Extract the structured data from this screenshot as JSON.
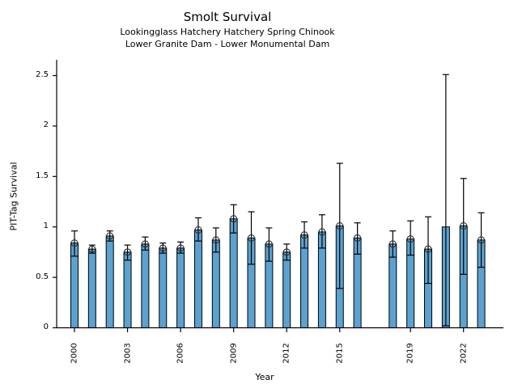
{
  "figure": {
    "title": "Smolt Survival",
    "subtitle_line1": "Lookingglass Hatchery Hatchery Spring Chinook",
    "subtitle_line2": "Lower Granite Dam - Lower Monumental Dam"
  },
  "chart_data": {
    "type": "bar",
    "title": "Smolt Survival",
    "subtitle": [
      "Lookingglass Hatchery Hatchery Spring Chinook",
      "Lower Granite Dam - Lower Monumental Dam"
    ],
    "xlabel": "Year",
    "ylabel": "PIT-Tag Survival",
    "ylim": [
      0,
      2.65
    ],
    "yticks": [
      "0",
      "0.5",
      "1",
      "1.5",
      "2",
      "2.5"
    ],
    "xticks": [
      2000,
      2003,
      2006,
      2009,
      2012,
      2015,
      2019,
      2022
    ],
    "grid": false,
    "legend": "none",
    "bar_color": "#5ba2d0",
    "bar_edge_color": "#000000",
    "errorbar_color": "#000000",
    "marker_color": "#2b2b2b",
    "missing_years": [
      2017
    ],
    "series": [
      {
        "year": 2000,
        "survival": 0.84,
        "ci_low": 0.71,
        "ci_high": 0.96,
        "marker": true
      },
      {
        "year": 2001,
        "survival": 0.78,
        "ci_low": 0.74,
        "ci_high": 0.82,
        "marker": true
      },
      {
        "year": 2002,
        "survival": 0.91,
        "ci_low": 0.86,
        "ci_high": 0.96,
        "marker": true
      },
      {
        "year": 2003,
        "survival": 0.75,
        "ci_low": 0.67,
        "ci_high": 0.82,
        "marker": true
      },
      {
        "year": 2004,
        "survival": 0.83,
        "ci_low": 0.77,
        "ci_high": 0.9,
        "marker": true
      },
      {
        "year": 2005,
        "survival": 0.79,
        "ci_low": 0.74,
        "ci_high": 0.84,
        "marker": true
      },
      {
        "year": 2006,
        "survival": 0.79,
        "ci_low": 0.74,
        "ci_high": 0.85,
        "marker": true
      },
      {
        "year": 2007,
        "survival": 0.97,
        "ci_low": 0.86,
        "ci_high": 1.09,
        "marker": true
      },
      {
        "year": 2008,
        "survival": 0.87,
        "ci_low": 0.75,
        "ci_high": 0.99,
        "marker": true
      },
      {
        "year": 2009,
        "survival": 1.08,
        "ci_low": 0.94,
        "ci_high": 1.22,
        "marker": true
      },
      {
        "year": 2010,
        "survival": 0.89,
        "ci_low": 0.63,
        "ci_high": 1.15,
        "marker": true
      },
      {
        "year": 2011,
        "survival": 0.83,
        "ci_low": 0.66,
        "ci_high": 0.99,
        "marker": true
      },
      {
        "year": 2012,
        "survival": 0.75,
        "ci_low": 0.67,
        "ci_high": 0.83,
        "marker": true
      },
      {
        "year": 2013,
        "survival": 0.92,
        "ci_low": 0.79,
        "ci_high": 1.05,
        "marker": true
      },
      {
        "year": 2014,
        "survival": 0.95,
        "ci_low": 0.79,
        "ci_high": 1.12,
        "marker": true
      },
      {
        "year": 2015,
        "survival": 1.01,
        "ci_low": 0.39,
        "ci_high": 1.63,
        "marker": true
      },
      {
        "year": 2016,
        "survival": 0.89,
        "ci_low": 0.73,
        "ci_high": 1.04,
        "marker": true
      },
      {
        "year": 2018,
        "survival": 0.83,
        "ci_low": 0.7,
        "ci_high": 0.96,
        "marker": true
      },
      {
        "year": 2019,
        "survival": 0.88,
        "ci_low": 0.72,
        "ci_high": 1.06,
        "marker": true
      },
      {
        "year": 2020,
        "survival": 0.78,
        "ci_low": 0.44,
        "ci_high": 1.1,
        "marker": true
      },
      {
        "year": 2021,
        "survival": 1.0,
        "ci_low": 0.02,
        "ci_high": 2.51,
        "marker": false
      },
      {
        "year": 2022,
        "survival": 1.01,
        "ci_low": 0.53,
        "ci_high": 1.48,
        "marker": true
      },
      {
        "year": 2023,
        "survival": 0.87,
        "ci_low": 0.6,
        "ci_high": 1.14,
        "marker": true
      }
    ]
  }
}
